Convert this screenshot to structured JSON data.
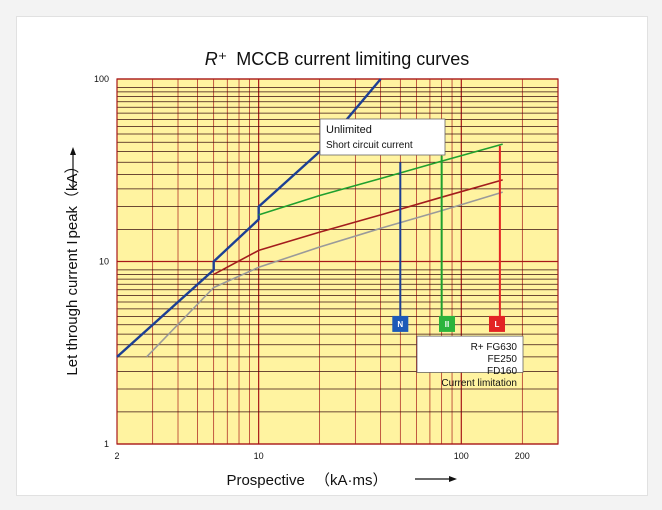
{
  "chart_data": {
    "type": "line",
    "title_mark": "R⁺",
    "title_text": "MCCB current limiting curves",
    "xlabel_main": "Prospective",
    "xlabel_unit": "（kA·ms）",
    "ylabel_main": "Let through current I",
    "ylabel_unit": "peak（kA）",
    "xlim": [
      2,
      300
    ],
    "ylim": [
      1,
      100
    ],
    "x_scale": "log",
    "y_scale": "log",
    "grid": true,
    "background_color": "#fff3a0",
    "grid_color": "#a81818",
    "x_ticks": [
      {
        "value": 2,
        "label": "2"
      },
      {
        "value": 10,
        "label": "10"
      },
      {
        "value": 100,
        "label": "100"
      },
      {
        "value": 200,
        "label": "200"
      }
    ],
    "y_ticks": [
      {
        "value": 1,
        "label": "1"
      },
      {
        "value": 10,
        "label": "10"
      },
      {
        "value": 100,
        "label": "100"
      }
    ],
    "series": [
      {
        "key": "unlimited",
        "color": "#1c3f94",
        "points": [
          [
            2,
            3
          ],
          [
            6,
            9
          ],
          [
            6,
            10
          ],
          [
            10,
            17
          ],
          [
            10,
            20
          ],
          [
            20,
            40
          ],
          [
            40,
            100
          ]
        ]
      },
      {
        "key": "FG630",
        "color": "#1fa02e",
        "points": [
          [
            10,
            18
          ],
          [
            20,
            23
          ],
          [
            40,
            28.5
          ],
          [
            80,
            35.5
          ],
          [
            160,
            44
          ]
        ]
      },
      {
        "key": "FE250",
        "color": "#a31c1c",
        "points": [
          [
            6,
            8.5
          ],
          [
            10,
            11.5
          ],
          [
            20,
            14.5
          ],
          [
            40,
            18
          ],
          [
            80,
            22.5
          ],
          [
            160,
            28
          ]
        ]
      },
      {
        "key": "FD160",
        "color": "#9a9a9a",
        "points": [
          [
            2.8,
            3
          ],
          [
            6,
            7.2
          ],
          [
            10,
            9.3
          ],
          [
            20,
            12
          ],
          [
            40,
            15.2
          ],
          [
            80,
            19
          ],
          [
            160,
            24
          ]
        ]
      }
    ],
    "drops": [
      {
        "x": 50,
        "y_top": 35,
        "color": "#1c3f94"
      },
      {
        "x": 80,
        "y_top": 38,
        "color": "#1fa02e"
      },
      {
        "x": 155,
        "y_top": 43,
        "color": "#e32424"
      }
    ],
    "markers": [
      {
        "x": 50,
        "label": "N",
        "color": "#1c5ab8"
      },
      {
        "x": 85,
        "label": "II",
        "color": "#2cb43c"
      },
      {
        "x": 150,
        "label": "L",
        "color": "#e32424"
      }
    ],
    "annotations": {
      "unlimited_line1": "Unlimited",
      "unlimited_line2": "Short circuit current",
      "legend_lines": [
        "R+ FG630",
        "FE250",
        "FD160",
        "Current limitation"
      ]
    }
  }
}
